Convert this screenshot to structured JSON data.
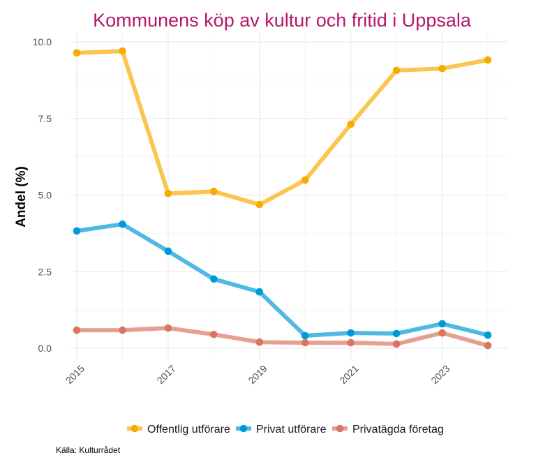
{
  "chart_data": {
    "type": "line",
    "title": "Kommunens köp av kultur och fritid i Uppsala",
    "xlabel": "",
    "ylabel": "Andel (%)",
    "x": [
      2015,
      2016,
      2017,
      2018,
      2019,
      2020,
      2021,
      2022,
      2023,
      2024
    ],
    "x_tick_labels": [
      "2015",
      "2017",
      "2019",
      "2021",
      "2023"
    ],
    "x_tick_values": [
      2015,
      2017,
      2019,
      2021,
      2023
    ],
    "xlim": [
      2015,
      2024
    ],
    "y_tick_labels": [
      "0.0",
      "2.5",
      "5.0",
      "7.5",
      "10.0"
    ],
    "y_tick_values": [
      0,
      2.5,
      5,
      7.5,
      10
    ],
    "ylim": [
      0,
      10
    ],
    "grid": true,
    "legend_position": "bottom",
    "series": [
      {
        "name": "Offentlig utförare",
        "color": "#f5ac00",
        "line_color": "#fbc64f",
        "values": [
          9.64,
          9.7,
          5.05,
          5.12,
          4.69,
          5.49,
          7.31,
          9.07,
          9.13,
          9.41
        ]
      },
      {
        "name": "Privat utförare",
        "color": "#009ad8",
        "line_color": "#4fb9e3",
        "values": [
          3.83,
          4.05,
          3.17,
          2.26,
          1.84,
          0.41,
          0.5,
          0.48,
          0.8,
          0.43
        ]
      },
      {
        "name": "Privatägda företag",
        "color": "#d97564",
        "line_color": "#e5a094",
        "values": [
          0.59,
          0.59,
          0.66,
          0.45,
          0.2,
          0.18,
          0.18,
          0.14,
          0.5,
          0.09
        ]
      }
    ],
    "caption": "Källa: Kulturrådet"
  }
}
